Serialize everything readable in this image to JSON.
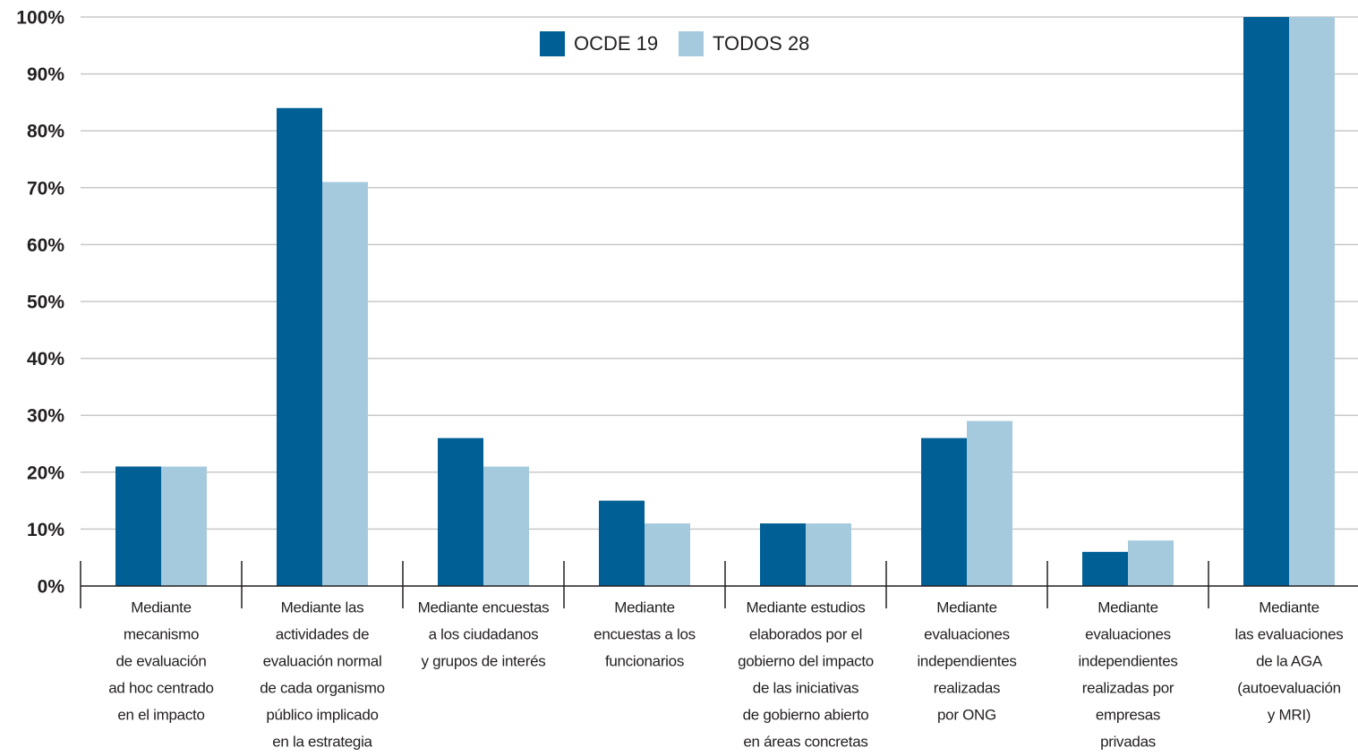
{
  "chart_data": {
    "type": "bar",
    "categories": [
      [
        "Mediante",
        "mecanismo",
        "de evaluación",
        "ad hoc centrado",
        "en el impacto"
      ],
      [
        "Mediante las",
        "actividades de",
        "evaluación normal",
        "de cada organismo",
        "público implicado",
        "en la estrategia"
      ],
      [
        "Mediante encuestas",
        "a los ciudadanos",
        "y grupos de interés"
      ],
      [
        "Mediante",
        "encuestas a los",
        "funcionarios"
      ],
      [
        "Mediante estudios",
        "elaborados por el",
        "gobierno del impacto",
        "de las iniciativas",
        "de gobierno abierto",
        "en áreas concretas"
      ],
      [
        "Mediante",
        "evaluaciones",
        "independientes",
        "realizadas",
        "por ONG"
      ],
      [
        "Mediante",
        "evaluaciones",
        "independientes",
        "realizadas por",
        "empresas",
        "privadas"
      ],
      [
        "Mediante",
        "las evaluaciones",
        "de la AGA",
        "(autoevaluación",
        "y MRI)"
      ]
    ],
    "series": [
      {
        "name": "OCDE 19",
        "color": "#005f94",
        "values": [
          21,
          84,
          26,
          15,
          11,
          26,
          6,
          100
        ]
      },
      {
        "name": "TODOS 28",
        "color": "#a6cadd",
        "values": [
          21,
          71,
          21,
          11,
          11,
          29,
          8,
          100
        ]
      }
    ],
    "ylim": [
      0,
      100
    ],
    "yticks": [
      {
        "value": 0,
        "label": "0%"
      },
      {
        "value": 10,
        "label": "10%"
      },
      {
        "value": 20,
        "label": "20%"
      },
      {
        "value": 30,
        "label": "30%"
      },
      {
        "value": 40,
        "label": "40%"
      },
      {
        "value": 50,
        "label": "50%"
      },
      {
        "value": 60,
        "label": "60%"
      },
      {
        "value": 70,
        "label": "70%"
      },
      {
        "value": 80,
        "label": "80%"
      },
      {
        "value": 90,
        "label": "90%"
      },
      {
        "value": 100,
        "label": "100%"
      }
    ],
    "grid": true,
    "legend": "top"
  }
}
